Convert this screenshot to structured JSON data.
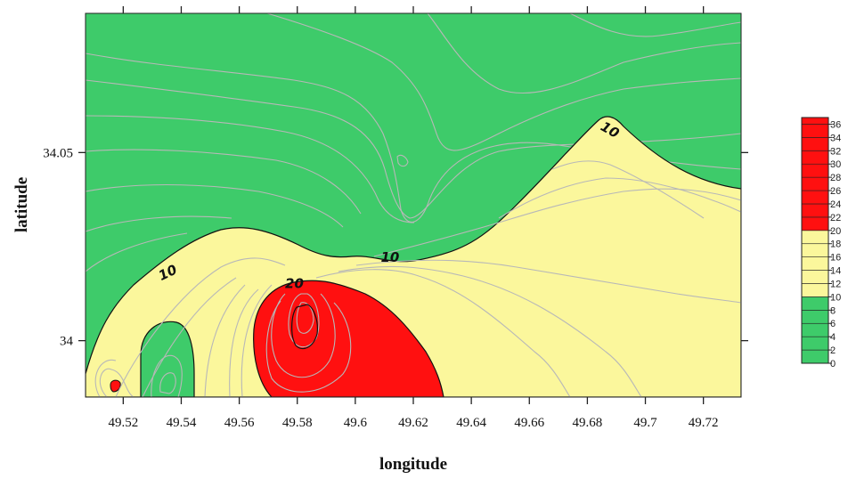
{
  "chart_data": {
    "type": "heatmap",
    "subtype": "filled-contour",
    "title": "",
    "xlabel": "longitude",
    "ylabel": "latitude",
    "xlim": [
      49.507,
      49.733
    ],
    "ylim": [
      33.985,
      34.087
    ],
    "x_ticks": [
      49.52,
      49.54,
      49.56,
      49.58,
      49.6,
      49.62,
      49.64,
      49.66,
      49.68,
      49.7,
      49.72
    ],
    "x_tick_labels": [
      "49.52",
      "49.54",
      "49.56",
      "49.58",
      "49.6",
      "49.62",
      "49.64",
      "49.66",
      "49.68",
      "49.7",
      "49.72"
    ],
    "y_ticks": [
      34.0,
      34.05
    ],
    "y_tick_labels": [
      "34",
      "34.05"
    ],
    "colorbar": {
      "levels": [
        0,
        2,
        4,
        6,
        8,
        10,
        12,
        14,
        16,
        18,
        20,
        22,
        24,
        26,
        28,
        30,
        32,
        34,
        36
      ],
      "labels": [
        "0",
        "2",
        "4",
        "6",
        "8",
        "10",
        "12",
        "14",
        "16",
        "18",
        "20",
        "22",
        "24",
        "26",
        "28",
        "30",
        "32",
        "34",
        "36"
      ],
      "bands": [
        {
          "from": 0,
          "to": 10,
          "color": "#3ecb6a"
        },
        {
          "from": 10,
          "to": 20,
          "color": "#fbf79c"
        },
        {
          "from": 20,
          "to": 37,
          "color": "#ff1010"
        }
      ]
    },
    "contour_labels": [
      {
        "text": "10",
        "lon": 49.536,
        "lat": 34.017
      },
      {
        "text": "10",
        "lon": 49.612,
        "lat": 34.021
      },
      {
        "text": "10",
        "lon": 49.687,
        "lat": 34.055
      },
      {
        "text": "20",
        "lon": 49.579,
        "lat": 34.014
      }
    ],
    "colors": {
      "low": "#3ecb6a",
      "mid": "#fbf79c",
      "high": "#ff1010",
      "isoline": "#b8b8b8",
      "boundary": "#111111"
    }
  }
}
